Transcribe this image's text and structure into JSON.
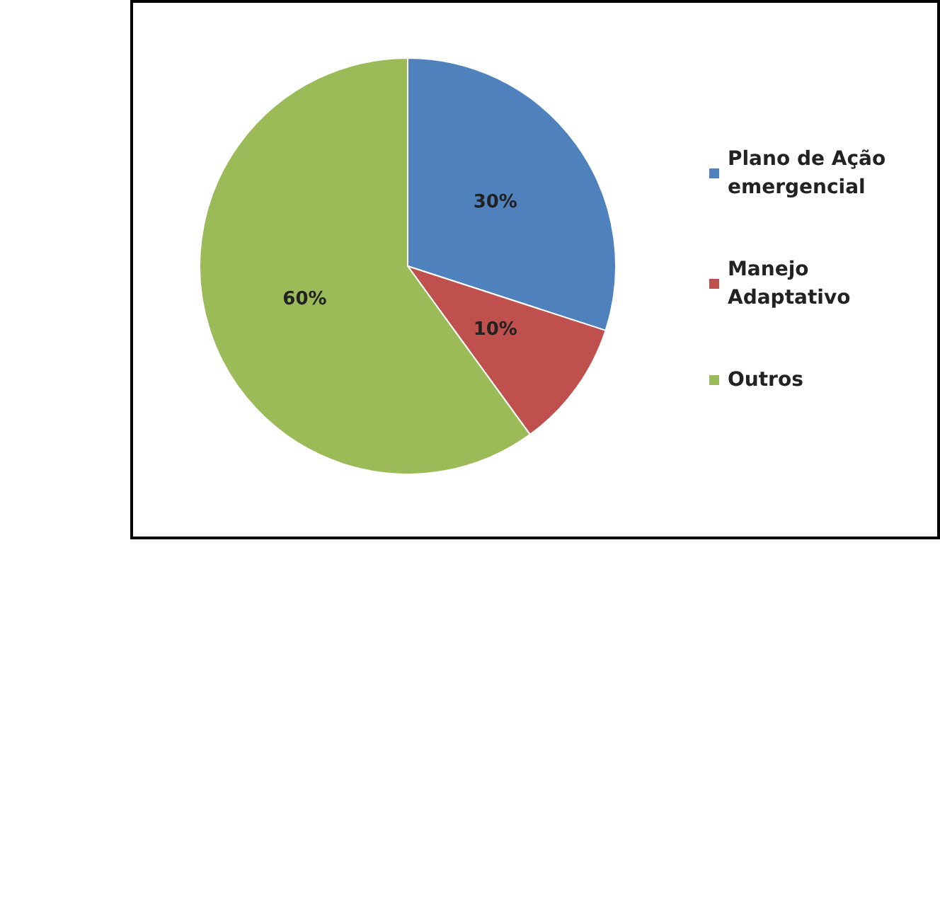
{
  "chart_data": {
    "type": "pie",
    "categories": [
      "Plano de Ação emergencial",
      "Manejo Adaptativo",
      "Outros"
    ],
    "values": [
      30,
      10,
      60
    ],
    "colors": [
      "#4f81bd",
      "#c0504d",
      "#9bbb59"
    ],
    "value_labels": [
      "30%",
      "10%",
      "60%"
    ],
    "legend": "right"
  }
}
